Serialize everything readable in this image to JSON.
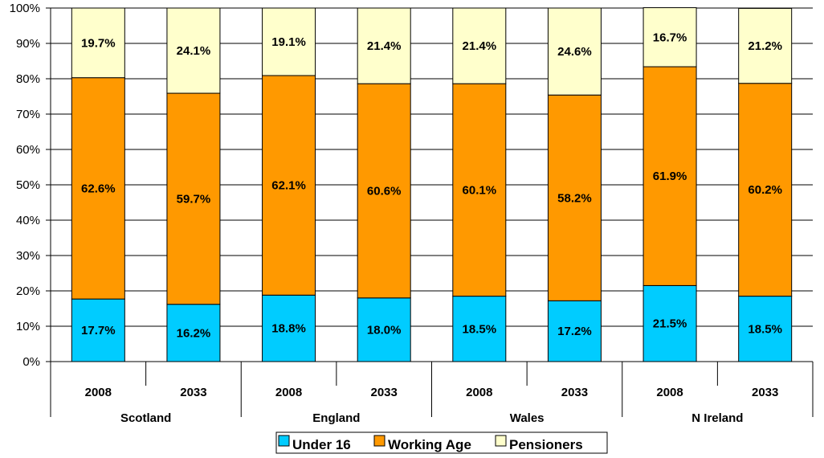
{
  "chart_data": {
    "type": "bar",
    "stacked": true,
    "percent_stacked": true,
    "title": "",
    "xlabel": "",
    "ylabel": "",
    "ylim": [
      0,
      100
    ],
    "yticks": [
      "0%",
      "10%",
      "20%",
      "30%",
      "40%",
      "50%",
      "60%",
      "70%",
      "80%",
      "90%",
      "100%"
    ],
    "groups": [
      "Scotland",
      "England",
      "Wales",
      "N Ireland"
    ],
    "categories": [
      "2008",
      "2033",
      "2008",
      "2033",
      "2008",
      "2033",
      "2008",
      "2033"
    ],
    "series": [
      {
        "name": "Under 16",
        "color": "#00ccff",
        "values": [
          17.7,
          16.2,
          18.8,
          18.0,
          18.5,
          17.2,
          21.5,
          18.5
        ],
        "labels": [
          "17.7%",
          "16.2%",
          "18.8%",
          "18.0%",
          "18.5%",
          "17.2%",
          "21.5%",
          "18.5%"
        ]
      },
      {
        "name": "Working Age",
        "color": "#ff9900",
        "values": [
          62.6,
          59.7,
          62.1,
          60.6,
          60.1,
          58.2,
          61.9,
          60.2
        ],
        "labels": [
          "62.6%",
          "59.7%",
          "62.1%",
          "60.6%",
          "60.1%",
          "58.2%",
          "61.9%",
          "60.2%"
        ]
      },
      {
        "name": "Pensioners",
        "color": "#ffffcc",
        "values": [
          19.7,
          24.1,
          19.1,
          21.4,
          21.4,
          24.6,
          16.7,
          21.2
        ],
        "labels": [
          "19.7%",
          "24.1%",
          "19.1%",
          "21.4%",
          "21.4%",
          "24.6%",
          "16.7%",
          "21.2%"
        ]
      }
    ],
    "legend": "bottom",
    "grid": true
  }
}
